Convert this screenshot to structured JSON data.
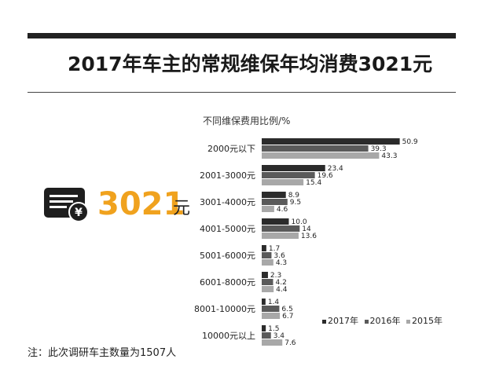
{
  "title": "2017年车主的常规维保年均消费3021元",
  "highlight": {
    "value": "3021",
    "unit": "元",
    "icon": "bill-yen-icon"
  },
  "footnote": "注：此次调研车主数量为1507人",
  "chart_data": {
    "type": "bar",
    "orientation": "horizontal",
    "title": "不同维保费用比例/%",
    "categories": [
      "2000元以下",
      "2001-3000元",
      "3001-4000元",
      "4001-5000元",
      "5001-6000元",
      "6001-8000元",
      "8001-10000元",
      "10000元以上"
    ],
    "series": [
      {
        "name": "2017年",
        "color": "#2b2b2b",
        "values": [
          50.9,
          23.4,
          8.9,
          10.0,
          1.7,
          2.3,
          1.4,
          1.5
        ],
        "labels": [
          "50.9",
          "23.4",
          "8.9",
          "10.0",
          "1.7",
          "2.3",
          "1.4",
          "1.5"
        ]
      },
      {
        "name": "2016年",
        "color": "#5a5a5a",
        "values": [
          39.3,
          19.6,
          9.5,
          14,
          3.6,
          4.2,
          6.5,
          3.4
        ],
        "labels": [
          "39.3",
          "19.6",
          "9.5",
          "14",
          "3.6",
          "4.2",
          "6.5",
          "3.4"
        ]
      },
      {
        "name": "2015年",
        "color": "#a8a8a8",
        "values": [
          43.3,
          15.4,
          4.6,
          13.6,
          4.3,
          4.4,
          6.7,
          7.6
        ],
        "labels": [
          "43.3",
          "15.4",
          "4.6",
          "13.6",
          "4.3",
          "4.4",
          "6.7",
          "7.6"
        ]
      }
    ],
    "legend_position": "bottom-right",
    "grid": false
  }
}
